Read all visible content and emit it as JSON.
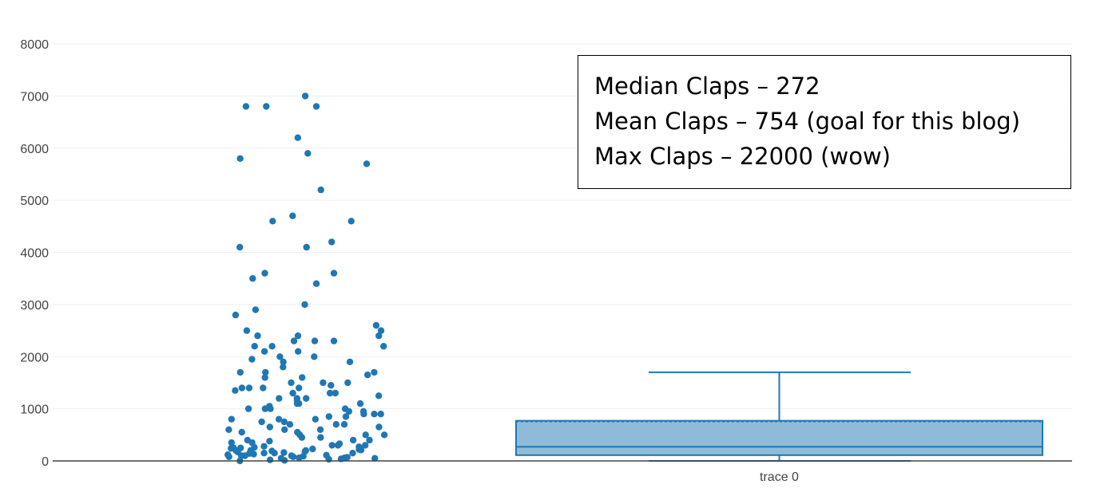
{
  "chart_data": {
    "type": "box",
    "y_axis": {
      "range": [
        0,
        8000
      ],
      "ticks": [
        0,
        1000,
        2000,
        3000,
        4000,
        5000,
        6000,
        7000,
        8000
      ],
      "grid": true
    },
    "x_axis": {
      "categories": [
        "trace 0"
      ]
    },
    "series": [
      {
        "name": "trace 0",
        "color": "#1f77b4",
        "box": {
          "min": 0,
          "q1": 110,
          "median": 272,
          "mean": 754,
          "q3": 770,
          "upper_fence": 1700
        },
        "jitter_points": {
          "shown": true,
          "y_values": [
            7000,
            6800,
            6800,
            6800,
            6200,
            5900,
            5800,
            5700,
            5200,
            4700,
            4600,
            4600,
            4200,
            4100,
            4100,
            3600,
            3600,
            3500,
            3400,
            3000,
            2900,
            2800,
            2600,
            2500,
            2500,
            2400,
            2400,
            2400,
            2300,
            2300,
            2300,
            2200,
            2200,
            2200,
            2100,
            2100,
            2000,
            2000,
            1950,
            1900,
            1900,
            1800,
            1700,
            1700,
            1700,
            1650,
            1600,
            1600,
            1500,
            1500,
            1500,
            1450,
            1400,
            1400,
            1400,
            1400,
            1350,
            1300,
            1300,
            1300,
            1250,
            1200,
            1200,
            1200,
            1150,
            1100,
            1100,
            1100,
            1050,
            1000,
            1000,
            1000,
            1000,
            950,
            950,
            900,
            900,
            900,
            850,
            850,
            800,
            800,
            800,
            750,
            750,
            700,
            700,
            700,
            650,
            650,
            600,
            600,
            600,
            550,
            550,
            500,
            500,
            500,
            450,
            450,
            400,
            400,
            400,
            380,
            350,
            350,
            330,
            300,
            300,
            300,
            280,
            270,
            260,
            250,
            250,
            240,
            230,
            220,
            210,
            200,
            200,
            200,
            190,
            180,
            170,
            160,
            150,
            150,
            150,
            140,
            130,
            120,
            110,
            100,
            100,
            100,
            90,
            80,
            80,
            70,
            60,
            60,
            50,
            50,
            40,
            30,
            20,
            10,
            0
          ]
        }
      }
    ]
  },
  "annotation": {
    "lines": [
      "Median Claps – 272",
      "Mean Claps – 754 (goal for this blog)",
      "Max Claps – 22000 (wow)"
    ]
  }
}
